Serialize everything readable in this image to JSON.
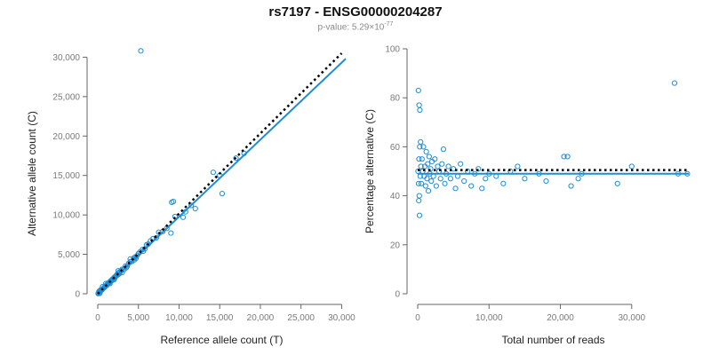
{
  "title": "rs7197 - ENSG00000204287",
  "subtitle": {
    "prefix": "p-value: ",
    "mantissa": "5.29",
    "times": "×10",
    "exponent": "-77"
  },
  "chart_data": [
    {
      "type": "scatter",
      "xlabel": "Reference allele count (T)",
      "ylabel": "Alternative allele count (C)",
      "xlim": [
        0,
        30500
      ],
      "ylim": [
        0,
        30500
      ],
      "x_ticks": [
        0,
        5000,
        10000,
        15000,
        20000,
        25000,
        30000
      ],
      "y_ticks": [
        0,
        5000,
        10000,
        15000,
        20000,
        25000,
        30000
      ],
      "x_tick_labels": [
        "0",
        "5,000",
        "10,000",
        "15,000",
        "20,000",
        "25,000",
        "30,000"
      ],
      "y_tick_labels": [
        "0",
        "5,000",
        "10,000",
        "15,000",
        "20,000",
        "25,000",
        "30,000"
      ],
      "grid": false,
      "point_color": "#1f8dd6",
      "points": [
        [
          100,
          100
        ],
        [
          200,
          210
        ],
        [
          300,
          280
        ],
        [
          400,
          420
        ],
        [
          500,
          480
        ],
        [
          600,
          620
        ],
        [
          700,
          690
        ],
        [
          800,
          780
        ],
        [
          900,
          950
        ],
        [
          1000,
          1020
        ],
        [
          1100,
          1050
        ],
        [
          1200,
          1260
        ],
        [
          1300,
          1280
        ],
        [
          1400,
          1450
        ],
        [
          1500,
          1470
        ],
        [
          1600,
          1650
        ],
        [
          1700,
          1640
        ],
        [
          1800,
          1850
        ],
        [
          1900,
          1880
        ],
        [
          2000,
          2050
        ],
        [
          2100,
          2000
        ],
        [
          2200,
          2250
        ],
        [
          2300,
          2280
        ],
        [
          2400,
          2500
        ],
        [
          2500,
          2420
        ],
        [
          2600,
          2700
        ],
        [
          2700,
          2600
        ],
        [
          2800,
          2850
        ],
        [
          2900,
          2950
        ],
        [
          3000,
          3100
        ],
        [
          3200,
          3050
        ],
        [
          3400,
          3500
        ],
        [
          3600,
          3450
        ],
        [
          3800,
          3850
        ],
        [
          4000,
          4050
        ],
        [
          4200,
          4100
        ],
        [
          4400,
          4500
        ],
        [
          4600,
          4650
        ],
        [
          4800,
          4800
        ],
        [
          5000,
          5100
        ],
        [
          5200,
          5300
        ],
        [
          5500,
          5600
        ],
        [
          5800,
          5700
        ],
        [
          6200,
          6300
        ],
        [
          6500,
          6700
        ],
        [
          6800,
          7000
        ],
        [
          7200,
          7100
        ],
        [
          7500,
          7800
        ],
        [
          8000,
          7900
        ],
        [
          8500,
          8300
        ],
        [
          9000,
          7700
        ],
        [
          9100,
          11600
        ],
        [
          9300,
          11700
        ],
        [
          9500,
          9800
        ],
        [
          10500,
          9700
        ],
        [
          10800,
          10400
        ],
        [
          11500,
          11200
        ],
        [
          12000,
          10800
        ],
        [
          14200,
          15400
        ],
        [
          15000,
          15000
        ],
        [
          15300,
          12700
        ],
        [
          17000,
          17200
        ],
        [
          18000,
          17800
        ],
        [
          5300,
          30800
        ],
        [
          600,
          900
        ],
        [
          1500,
          1300
        ],
        [
          2500,
          2900
        ],
        [
          3500,
          3300
        ],
        [
          4500,
          4300
        ],
        [
          150,
          300
        ],
        [
          250,
          50
        ],
        [
          350,
          500
        ],
        [
          50,
          20
        ],
        [
          1000,
          1300
        ],
        [
          2000,
          1800
        ],
        [
          3000,
          2700
        ],
        [
          4000,
          4400
        ],
        [
          4700,
          4500
        ],
        [
          5600,
          5400
        ],
        [
          6000,
          6200
        ]
      ],
      "reference_line_style": "dotted black",
      "reference_line": [
        [
          0,
          0
        ],
        [
          30000,
          30500
        ]
      ],
      "fit_line_color": "#1f8dd6",
      "fit_line": [
        [
          0,
          0
        ],
        [
          30500,
          29800
        ]
      ]
    },
    {
      "type": "scatter",
      "xlabel": "Total number of reads",
      "ylabel": "Percentage alternative (C)",
      "xlim": [
        0,
        38000
      ],
      "ylim": [
        0,
        100
      ],
      "x_ticks": [
        0,
        10000,
        20000,
        30000
      ],
      "y_ticks": [
        0,
        20,
        40,
        60,
        80,
        100
      ],
      "x_tick_labels": [
        "0",
        "10,000",
        "20,000",
        "30,000"
      ],
      "y_tick_labels": [
        "0",
        "20",
        "40",
        "60",
        "80",
        "100"
      ],
      "grid": false,
      "point_color": "#1f8dd6",
      "points": [
        [
          100,
          83
        ],
        [
          200,
          77
        ],
        [
          300,
          75
        ],
        [
          150,
          38
        ],
        [
          250,
          32
        ],
        [
          400,
          62
        ],
        [
          500,
          45
        ],
        [
          600,
          55
        ],
        [
          700,
          50
        ],
        [
          800,
          60
        ],
        [
          900,
          48
        ],
        [
          1000,
          52
        ],
        [
          1100,
          44
        ],
        [
          1200,
          58
        ],
        [
          1300,
          47
        ],
        [
          1400,
          53
        ],
        [
          1500,
          42
        ],
        [
          1600,
          56
        ],
        [
          1700,
          49
        ],
        [
          1800,
          51
        ],
        [
          1900,
          46
        ],
        [
          2000,
          54
        ],
        [
          2200,
          48
        ],
        [
          2400,
          55
        ],
        [
          2600,
          44
        ],
        [
          2800,
          52
        ],
        [
          3000,
          50
        ],
        [
          3200,
          47
        ],
        [
          3400,
          53
        ],
        [
          3600,
          59
        ],
        [
          3800,
          45
        ],
        [
          4000,
          49
        ],
        [
          4300,
          52
        ],
        [
          4600,
          47
        ],
        [
          5000,
          51
        ],
        [
          5300,
          43
        ],
        [
          5600,
          48
        ],
        [
          6000,
          53
        ],
        [
          6500,
          46
        ],
        [
          7000,
          50
        ],
        [
          7500,
          44
        ],
        [
          8000,
          49
        ],
        [
          8500,
          51
        ],
        [
          9000,
          43
        ],
        [
          9500,
          47
        ],
        [
          10000,
          49
        ],
        [
          11000,
          48
        ],
        [
          12000,
          45
        ],
        [
          13000,
          50
        ],
        [
          14000,
          52
        ],
        [
          15000,
          47
        ],
        [
          17000,
          49
        ],
        [
          18000,
          46
        ],
        [
          20500,
          56
        ],
        [
          21000,
          56
        ],
        [
          21500,
          44
        ],
        [
          22500,
          47
        ],
        [
          23000,
          49
        ],
        [
          28000,
          45
        ],
        [
          30000,
          52
        ],
        [
          36000,
          86
        ],
        [
          36500,
          49
        ],
        [
          37800,
          49
        ],
        [
          50,
          50
        ],
        [
          120,
          45
        ],
        [
          180,
          55
        ],
        [
          220,
          40
        ],
        [
          280,
          60
        ],
        [
          350,
          48
        ],
        [
          450,
          52
        ]
      ],
      "reference_line_style": "dotted black",
      "reference_line": [
        [
          0,
          50.5
        ],
        [
          38000,
          50.5
        ]
      ],
      "fit_line_color": "#1f8dd6",
      "fit_line": [
        [
          0,
          49
        ],
        [
          38000,
          49
        ]
      ]
    }
  ]
}
